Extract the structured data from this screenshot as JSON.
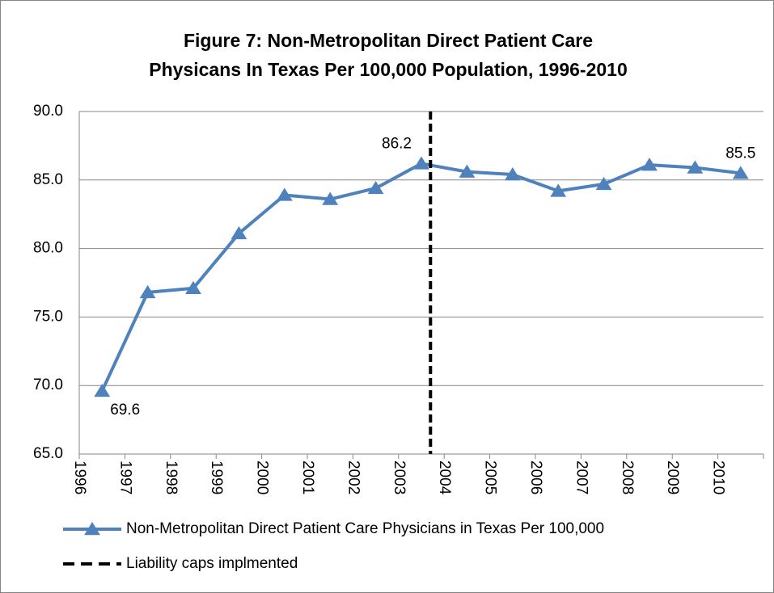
{
  "chart_data": {
    "type": "line",
    "title": "Figure 7: Non-Metropolitan Direct Patient Care",
    "subtitle": "Physicans In Texas Per 100,000 Population, 1996-2010",
    "categories": [
      "1996",
      "1997",
      "1998",
      "1999",
      "2000",
      "2001",
      "2002",
      "2003",
      "2004",
      "2005",
      "2006",
      "2007",
      "2008",
      "2009",
      "2010"
    ],
    "series": [
      {
        "name": "Non-Metropolitan Direct Patient Care Physicians in Texas Per 100,000",
        "color": "#4f81bd",
        "values": [
          69.6,
          76.8,
          77.1,
          81.1,
          83.9,
          83.6,
          84.4,
          86.2,
          85.6,
          85.4,
          84.2,
          84.7,
          86.1,
          85.9,
          85.5
        ],
        "value_labels": [
          "69.6",
          null,
          null,
          null,
          null,
          null,
          null,
          "86.2",
          null,
          null,
          null,
          null,
          null,
          null,
          "85.5"
        ]
      }
    ],
    "vline": {
      "name": "Liability caps implmented",
      "color": "#000000",
      "x": 2003.2
    },
    "ylim": [
      65,
      90
    ],
    "yticks": [
      {
        "value": 65,
        "label": "65.0"
      },
      {
        "value": 70,
        "label": "70.0"
      },
      {
        "value": 75,
        "label": "75.0"
      },
      {
        "value": 80,
        "label": "80.0"
      },
      {
        "value": 85,
        "label": "85.0"
      },
      {
        "value": 90,
        "label": "90.0"
      }
    ],
    "grid": true,
    "legend": "bottom"
  }
}
